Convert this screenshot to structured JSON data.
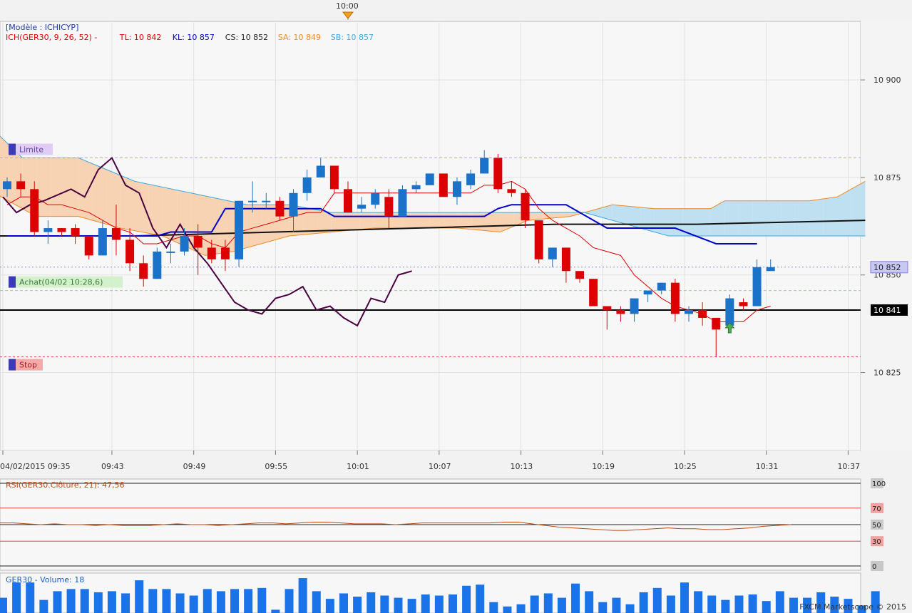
{
  "top_time_marker": "10:00",
  "model_label": "[Modèle : ICHICYP]",
  "legend": {
    "ich": "ICH(GER30, 9, 26, 52) -",
    "tl": "TL: 10 842",
    "kl": "KL: 10 857",
    "cs": "CS: 10 852",
    "sa": "SA: 10 849",
    "sb": "SB: 10 857"
  },
  "order_labels": {
    "limit": "Limite",
    "buy": "Achat(04/02 10:28,6)",
    "stop": "Stop"
  },
  "price_tags": {
    "current": "10 852",
    "buy": "10 841"
  },
  "footer": "FXCM Marketscope © 2015",
  "colors": {
    "bull": "#1a73c8",
    "bear": "#dd0000",
    "tenkan": "#e00000",
    "kijun": "#0000cc",
    "chikou": "#4a0040",
    "span_a": "#f08a24",
    "span_b": "#39aadd",
    "cloud_bull": "#f7d3b4",
    "cloud_bear": "#bfe0f0"
  },
  "chart_data": [
    {
      "type": "candlestick",
      "title": "GER30",
      "y_ticks": [
        "10 900",
        "10 875",
        "10 850",
        "10 825"
      ],
      "ylim": [
        10805,
        10915
      ],
      "x_ticks": [
        "04/02/2015 09:35",
        "09:43",
        "09:49",
        "09:55",
        "10:01",
        "10:07",
        "10:13",
        "10:19",
        "10:25",
        "10:31",
        "10:37"
      ],
      "grid": true,
      "candles": [
        {
          "t": "09:35",
          "o": 10872,
          "h": 10875,
          "l": 10870,
          "c": 10874
        },
        {
          "t": "09:36",
          "o": 10874,
          "h": 10876,
          "l": 10870,
          "c": 10872
        },
        {
          "t": "09:37",
          "o": 10872,
          "h": 10874,
          "l": 10860,
          "c": 10861
        },
        {
          "t": "09:38",
          "o": 10861,
          "h": 10864,
          "l": 10858,
          "c": 10862
        },
        {
          "t": "09:39",
          "o": 10862,
          "h": 10862,
          "l": 10860,
          "c": 10861
        },
        {
          "t": "09:40",
          "o": 10862,
          "h": 10863,
          "l": 10858,
          "c": 10860
        },
        {
          "t": "09:41",
          "o": 10860,
          "h": 10860,
          "l": 10854,
          "c": 10855
        },
        {
          "t": "09:42",
          "o": 10855,
          "h": 10864,
          "l": 10855,
          "c": 10862
        },
        {
          "t": "09:43",
          "o": 10862,
          "h": 10868,
          "l": 10855,
          "c": 10859
        },
        {
          "t": "09:44",
          "o": 10859,
          "h": 10862,
          "l": 10851,
          "c": 10853
        },
        {
          "t": "09:45",
          "o": 10853,
          "h": 10855,
          "l": 10847,
          "c": 10849
        },
        {
          "t": "09:46",
          "o": 10849,
          "h": 10857,
          "l": 10849,
          "c": 10856
        },
        {
          "t": "09:47",
          "o": 10856,
          "h": 10858,
          "l": 10853,
          "c": 10856
        },
        {
          "t": "09:48",
          "o": 10856,
          "h": 10862,
          "l": 10855,
          "c": 10860
        },
        {
          "t": "09:49",
          "o": 10860,
          "h": 10863,
          "l": 10850,
          "c": 10857
        },
        {
          "t": "09:50",
          "o": 10857,
          "h": 10859,
          "l": 10853,
          "c": 10854
        },
        {
          "t": "09:51",
          "o": 10857,
          "h": 10859,
          "l": 10851,
          "c": 10854
        },
        {
          "t": "09:52",
          "o": 10854,
          "h": 10869,
          "l": 10852,
          "c": 10869
        },
        {
          "t": "09:53",
          "o": 10869,
          "h": 10874,
          "l": 10866,
          "c": 10869
        },
        {
          "t": "09:54",
          "o": 10869,
          "h": 10871,
          "l": 10867,
          "c": 10869
        },
        {
          "t": "09:55",
          "o": 10869,
          "h": 10870,
          "l": 10864,
          "c": 10865
        },
        {
          "t": "09:56",
          "o": 10865,
          "h": 10872,
          "l": 10861,
          "c": 10871
        },
        {
          "t": "09:57",
          "o": 10871,
          "h": 10877,
          "l": 10869,
          "c": 10875
        },
        {
          "t": "09:58",
          "o": 10875,
          "h": 10880,
          "l": 10875,
          "c": 10878
        },
        {
          "t": "09:59",
          "o": 10878,
          "h": 10878,
          "l": 10871,
          "c": 10872
        },
        {
          "t": "10:00",
          "o": 10872,
          "h": 10874,
          "l": 10866,
          "c": 10866
        },
        {
          "t": "10:01",
          "o": 10867,
          "h": 10870,
          "l": 10866,
          "c": 10868
        },
        {
          "t": "10:02",
          "o": 10868,
          "h": 10872,
          "l": 10867,
          "c": 10871
        },
        {
          "t": "10:03",
          "o": 10870,
          "h": 10872,
          "l": 10862,
          "c": 10865
        },
        {
          "t": "10:04",
          "o": 10865,
          "h": 10873,
          "l": 10865,
          "c": 10872
        },
        {
          "t": "10:05",
          "o": 10872,
          "h": 10874,
          "l": 10871,
          "c": 10873
        },
        {
          "t": "10:06",
          "o": 10873,
          "h": 10876,
          "l": 10873,
          "c": 10876
        },
        {
          "t": "10:07",
          "o": 10876,
          "h": 10876,
          "l": 10870,
          "c": 10870
        },
        {
          "t": "10:08",
          "o": 10870,
          "h": 10875,
          "l": 10868,
          "c": 10874
        },
        {
          "t": "10:09",
          "o": 10873,
          "h": 10877,
          "l": 10872,
          "c": 10876
        },
        {
          "t": "10:10",
          "o": 10876,
          "h": 10882,
          "l": 10876,
          "c": 10880
        },
        {
          "t": "10:11",
          "o": 10880,
          "h": 10881,
          "l": 10871,
          "c": 10872
        },
        {
          "t": "10:12",
          "o": 10872,
          "h": 10874,
          "l": 10870,
          "c": 10871
        },
        {
          "t": "10:13",
          "o": 10871,
          "h": 10872,
          "l": 10862,
          "c": 10864
        },
        {
          "t": "10:14",
          "o": 10864,
          "h": 10864,
          "l": 10853,
          "c": 10854
        },
        {
          "t": "10:15",
          "o": 10854,
          "h": 10857,
          "l": 10852,
          "c": 10857
        },
        {
          "t": "10:16",
          "o": 10857,
          "h": 10857,
          "l": 10848,
          "c": 10851
        },
        {
          "t": "10:17",
          "o": 10851,
          "h": 10851,
          "l": 10848,
          "c": 10849
        },
        {
          "t": "10:18",
          "o": 10849,
          "h": 10849,
          "l": 10842,
          "c": 10842
        },
        {
          "t": "10:19",
          "o": 10842,
          "h": 10842,
          "l": 10836,
          "c": 10841
        },
        {
          "t": "10:20",
          "o": 10841,
          "h": 10842,
          "l": 10838,
          "c": 10840
        },
        {
          "t": "10:21",
          "o": 10840,
          "h": 10844,
          "l": 10838,
          "c": 10844
        },
        {
          "t": "10:22",
          "o": 10845,
          "h": 10846,
          "l": 10843,
          "c": 10846
        },
        {
          "t": "10:23",
          "o": 10846,
          "h": 10848,
          "l": 10845,
          "c": 10848
        },
        {
          "t": "10:24",
          "o": 10848,
          "h": 10849,
          "l": 10838,
          "c": 10840
        },
        {
          "t": "10:25",
          "o": 10840,
          "h": 10842,
          "l": 10838,
          "c": 10841
        },
        {
          "t": "10:26",
          "o": 10841,
          "h": 10843,
          "l": 10837,
          "c": 10839
        },
        {
          "t": "10:27",
          "o": 10839,
          "h": 10839,
          "l": 10829,
          "c": 10836
        },
        {
          "t": "10:28",
          "o": 10837,
          "h": 10845,
          "l": 10837,
          "c": 10844
        },
        {
          "t": "10:29",
          "o": 10843,
          "h": 10844,
          "l": 10841,
          "c": 10842
        },
        {
          "t": "10:30",
          "o": 10842,
          "h": 10854,
          "l": 10842,
          "c": 10852
        },
        {
          "t": "10:31",
          "o": 10851,
          "h": 10854,
          "l": 10851,
          "c": 10852
        }
      ],
      "tenkan": [
        [
          0,
          10868
        ],
        [
          1,
          10870
        ],
        [
          2,
          10870
        ],
        [
          3,
          10868
        ],
        [
          4,
          10868
        ],
        [
          5,
          10867
        ],
        [
          6,
          10866
        ],
        [
          7,
          10864
        ],
        [
          8,
          10862
        ],
        [
          9,
          10861
        ],
        [
          10,
          10858
        ],
        [
          11,
          10858
        ],
        [
          12,
          10859
        ],
        [
          13,
          10860
        ],
        [
          14,
          10860
        ],
        [
          15,
          10858
        ],
        [
          16,
          10857
        ],
        [
          17,
          10861
        ],
        [
          18,
          10862
        ],
        [
          19,
          10863
        ],
        [
          20,
          10864
        ],
        [
          21,
          10865
        ],
        [
          22,
          10866
        ],
        [
          23,
          10866
        ],
        [
          24,
          10871
        ],
        [
          25,
          10871
        ],
        [
          26,
          10871
        ],
        [
          27,
          10871
        ],
        [
          28,
          10871
        ],
        [
          29,
          10871
        ],
        [
          30,
          10871
        ],
        [
          31,
          10871
        ],
        [
          32,
          10871
        ],
        [
          33,
          10871
        ],
        [
          34,
          10871
        ],
        [
          35,
          10873
        ],
        [
          36,
          10873
        ],
        [
          37,
          10874
        ],
        [
          38,
          10872
        ],
        [
          39,
          10867
        ],
        [
          40,
          10864
        ],
        [
          41,
          10862
        ],
        [
          42,
          10860
        ],
        [
          43,
          10857
        ],
        [
          44,
          10856
        ],
        [
          45,
          10855
        ],
        [
          46,
          10850
        ],
        [
          47,
          10847
        ],
        [
          48,
          10844
        ],
        [
          49,
          10842
        ],
        [
          50,
          10841
        ],
        [
          51,
          10840
        ],
        [
          52,
          10838
        ],
        [
          53,
          10838
        ],
        [
          54,
          10838
        ],
        [
          55,
          10841
        ],
        [
          56,
          10842
        ]
      ],
      "kijun": [
        [
          0,
          10860
        ],
        [
          5,
          10860
        ],
        [
          10,
          10860
        ],
        [
          11,
          10860
        ],
        [
          12,
          10861
        ],
        [
          15,
          10861
        ],
        [
          16,
          10867
        ],
        [
          23,
          10867
        ],
        [
          24,
          10865
        ],
        [
          35,
          10865
        ],
        [
          36,
          10867
        ],
        [
          37,
          10868
        ],
        [
          41,
          10868
        ],
        [
          42,
          10866
        ],
        [
          44,
          10862
        ],
        [
          48,
          10862
        ],
        [
          49,
          10862
        ],
        [
          52,
          10858
        ],
        [
          55,
          10858
        ]
      ],
      "span_a": [
        [
          0,
          10871
        ],
        [
          3,
          10865
        ],
        [
          6,
          10865
        ],
        [
          9,
          10862
        ],
        [
          12,
          10860
        ],
        [
          15,
          10855
        ],
        [
          17,
          10856
        ],
        [
          21,
          10860
        ],
        [
          27,
          10862
        ],
        [
          33,
          10862
        ],
        [
          36,
          10861
        ],
        [
          38,
          10864
        ],
        [
          41,
          10865
        ],
        [
          44,
          10868
        ],
        [
          47,
          10867
        ],
        [
          51,
          10867
        ],
        [
          52,
          10869
        ],
        [
          54,
          10869
        ],
        [
          58,
          10869
        ],
        [
          60,
          10870
        ],
        [
          62,
          10874
        ]
      ],
      "span_b": [
        [
          0,
          10887
        ],
        [
          2,
          10880
        ],
        [
          6,
          10880
        ],
        [
          10,
          10874
        ],
        [
          14,
          10871
        ],
        [
          18,
          10868
        ],
        [
          21,
          10868
        ],
        [
          24,
          10866
        ],
        [
          27,
          10866
        ],
        [
          33,
          10866
        ],
        [
          38,
          10866
        ],
        [
          42,
          10866
        ],
        [
          44,
          10864
        ],
        [
          48,
          10860
        ],
        [
          52,
          10860
        ],
        [
          62,
          10860
        ]
      ],
      "black_line": [
        [
          0,
          10860
        ],
        [
          10,
          10860
        ],
        [
          20,
          10861
        ],
        [
          30,
          10862
        ],
        [
          40,
          10863
        ],
        [
          50,
          10863
        ],
        [
          62,
          10864
        ]
      ],
      "chikou": [
        [
          0,
          10870
        ],
        [
          1,
          10866
        ],
        [
          2,
          10868
        ],
        [
          3,
          10869
        ],
        [
          5,
          10872
        ],
        [
          6,
          10870
        ],
        [
          7,
          10877
        ],
        [
          8,
          10880
        ],
        [
          9,
          10873
        ],
        [
          10,
          10871
        ],
        [
          11,
          10862
        ],
        [
          12,
          10857
        ],
        [
          13,
          10863
        ],
        [
          14,
          10857
        ],
        [
          15,
          10853
        ],
        [
          16,
          10848
        ],
        [
          17,
          10843
        ],
        [
          18,
          10841
        ],
        [
          19,
          10840
        ],
        [
          20,
          10844
        ],
        [
          21,
          10845
        ],
        [
          22,
          10847
        ],
        [
          23,
          10841
        ],
        [
          24,
          10842
        ],
        [
          25,
          10839
        ],
        [
          26,
          10837
        ],
        [
          27,
          10844
        ],
        [
          28,
          10843
        ],
        [
          29,
          10850
        ],
        [
          30,
          10851
        ]
      ],
      "levels": {
        "limit": 10880,
        "buy": 10846,
        "position": 10841,
        "stop": 10829,
        "current": 10852
      }
    },
    {
      "type": "line",
      "title": "RSI(GER30.Clôture, 21): 47,56",
      "y_ticks": [
        "100",
        "70",
        "50",
        "30",
        "0"
      ],
      "ylim": [
        0,
        100
      ],
      "values": [
        52,
        52,
        51,
        50,
        51,
        50,
        50,
        49,
        50,
        49,
        49,
        49,
        50,
        51,
        50,
        50,
        49,
        50,
        51,
        52,
        52,
        51,
        52,
        53,
        53,
        52,
        51,
        51,
        51,
        50,
        51,
        52,
        52,
        52,
        52,
        52,
        52,
        53,
        53,
        51,
        49,
        47,
        46,
        45,
        44,
        43,
        43,
        44,
        45,
        46,
        45,
        45,
        44,
        44,
        45,
        46,
        48,
        49,
        50
      ]
    },
    {
      "type": "bar",
      "title": "GER30 - Volume: 18",
      "values": [
        14,
        28,
        28,
        12,
        20,
        22,
        22,
        19,
        20,
        18,
        30,
        22,
        22,
        18,
        16,
        22,
        20,
        22,
        22,
        23,
        3,
        22,
        32,
        20,
        13,
        18,
        15,
        19,
        16,
        14,
        13,
        17,
        16,
        17,
        25,
        26,
        10,
        6,
        8,
        16,
        18,
        14,
        27,
        20,
        10,
        14,
        8,
        19,
        23,
        16,
        28,
        20,
        16,
        12,
        16,
        17,
        11,
        20,
        14,
        14,
        19,
        15,
        13,
        7,
        20
      ]
    }
  ]
}
